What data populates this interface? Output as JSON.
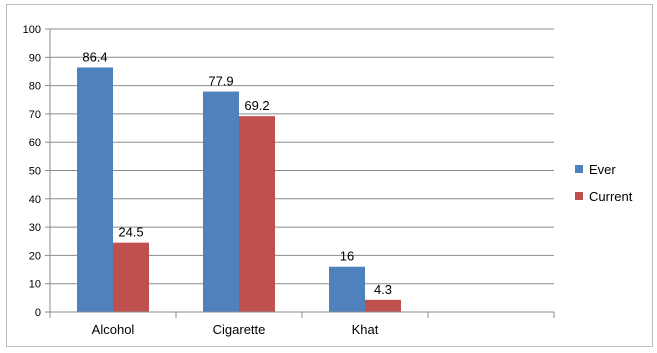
{
  "chart_data": {
    "type": "bar",
    "title": "",
    "xlabel": "",
    "ylabel": "",
    "categories": [
      "Alcohol",
      "Cigarette",
      "Khat",
      ""
    ],
    "series": [
      {
        "name": "Ever",
        "color": "#4F81BD",
        "values": [
          86.4,
          77.9,
          16,
          null
        ]
      },
      {
        "name": "Current",
        "color": "#C0504D",
        "values": [
          24.5,
          69.2,
          4.3,
          null
        ]
      }
    ],
    "data_labels": [
      [
        "86.4",
        "77.9",
        "16",
        ""
      ],
      [
        "24.5",
        "69.2",
        "4.3",
        ""
      ]
    ],
    "ylim": [
      0,
      100
    ],
    "yticks": [
      "0",
      "10",
      "20",
      "30",
      "40",
      "50",
      "60",
      "70",
      "80",
      "90",
      "100"
    ],
    "grid": true,
    "legend_position": "right"
  }
}
